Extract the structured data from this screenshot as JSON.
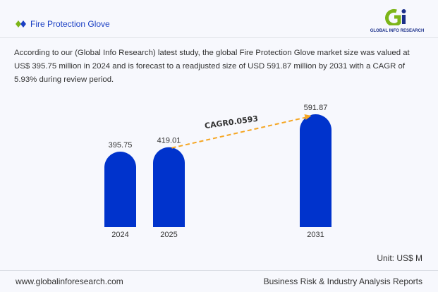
{
  "header": {
    "title": "Fire Protection Glove",
    "logo_text": "GLOBAL INFO RESEARCH"
  },
  "description": "According to our (Global Info Research) latest study, the global Fire Protection Glove market size was valued at US$ 395.75 million in 2024 and is forecast to a readjusted size of USD 591.87 million by 2031 with a CAGR of 5.93% during review period.",
  "chart_data": {
    "type": "bar",
    "categories": [
      "2024",
      "2025",
      "2031"
    ],
    "values": [
      395.75,
      419.01,
      591.87
    ],
    "value_labels": [
      "395.75",
      "419.01",
      "591.87"
    ],
    "annotation": "CAGR0.0593",
    "unit": "Unit: US$ M",
    "bar_color": "#0033cc",
    "arrow_color": "#f5a623",
    "ylim": [
      0,
      600
    ],
    "grid": false
  },
  "footer": {
    "website": "www.globalinforesearch.com",
    "tagline": "Business Risk & Industry Analysis Reports"
  }
}
